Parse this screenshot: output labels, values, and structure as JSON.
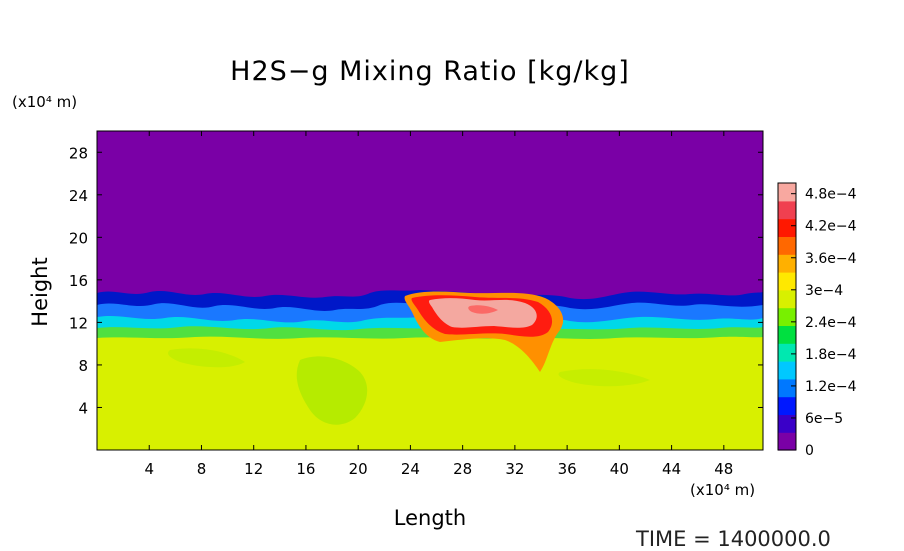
{
  "chart_data": {
    "type": "heatmap",
    "title": "H2S−g Mixing Ratio [kg/kg]",
    "xlabel": "Length",
    "ylabel": "Height",
    "x_unit": "(x10⁴ m)",
    "y_unit": "(x10⁴ m)",
    "xlim": [
      0,
      51
    ],
    "ylim": [
      0,
      30
    ],
    "x_ticks": [
      4,
      8,
      12,
      16,
      20,
      24,
      28,
      32,
      36,
      40,
      44,
      48
    ],
    "y_ticks": [
      4,
      8,
      12,
      16,
      20,
      24,
      28
    ],
    "colorbar": {
      "range": [
        0,
        0.0005
      ],
      "tick_labels": [
        "0",
        "6e−5",
        "1.2e−4",
        "1.8e−4",
        "2.4e−4",
        "3e−4",
        "3.6e−4",
        "4.2e−4",
        "4.8e−4"
      ],
      "tick_values": [
        0,
        6e-05,
        0.00012,
        0.00018,
        0.00024,
        0.0003,
        0.00036,
        0.00042,
        0.00048
      ],
      "colors": [
        "#7a00a6",
        "#3a00c8",
        "#0018ff",
        "#0078ff",
        "#00c8ff",
        "#00e8b0",
        "#00e040",
        "#78f000",
        "#d8f000",
        "#ffe800",
        "#ffb000",
        "#ff6800",
        "#ff1800",
        "#f04050",
        "#f8a8a0"
      ]
    },
    "fields": [
      {
        "name": "upper_region",
        "y_range": [
          14,
          30
        ],
        "value": 0.0
      },
      {
        "name": "lower_layer",
        "y_range": [
          0,
          11
        ],
        "value": 0.00034
      },
      {
        "name": "interface_band",
        "y_range": [
          11,
          14.5
        ],
        "value": 0.00012
      },
      {
        "name": "plume_core",
        "x_range": [
          24,
          35
        ],
        "y_range": [
          10.5,
          14.8
        ],
        "value": 0.00048
      }
    ]
  },
  "time_label": "TIME  =  1400000.0"
}
